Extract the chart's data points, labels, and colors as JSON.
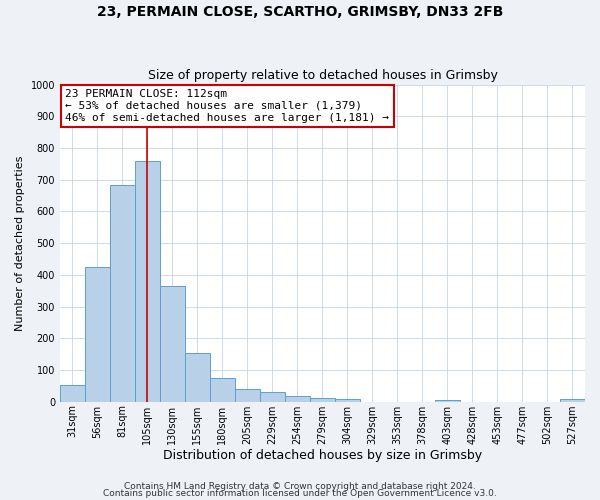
{
  "title": "23, PERMAIN CLOSE, SCARTHO, GRIMSBY, DN33 2FB",
  "subtitle": "Size of property relative to detached houses in Grimsby",
  "xlabel": "Distribution of detached houses by size in Grimsby",
  "ylabel": "Number of detached properties",
  "bar_labels": [
    "31sqm",
    "56sqm",
    "81sqm",
    "105sqm",
    "130sqm",
    "155sqm",
    "180sqm",
    "205sqm",
    "229sqm",
    "254sqm",
    "279sqm",
    "304sqm",
    "329sqm",
    "353sqm",
    "378sqm",
    "403sqm",
    "428sqm",
    "453sqm",
    "477sqm",
    "502sqm",
    "527sqm"
  ],
  "bar_values": [
    52,
    425,
    682,
    760,
    365,
    153,
    75,
    40,
    32,
    18,
    10,
    8,
    0,
    0,
    0,
    5,
    0,
    0,
    0,
    0,
    8
  ],
  "bar_color": "#b8d0e8",
  "bar_edge_color": "#5a9fd4",
  "annotation_title": "23 PERMAIN CLOSE: 112sqm",
  "annotation_line1": "← 53% of detached houses are smaller (1,379)",
  "annotation_line2": "46% of semi-detached houses are larger (1,181) →",
  "annotation_box_color": "#ffffff",
  "annotation_border_color": "#cc0000",
  "vline_color": "#cc0000",
  "vline_bar_index": 3,
  "ylim": [
    0,
    1000
  ],
  "yticks": [
    0,
    100,
    200,
    300,
    400,
    500,
    600,
    700,
    800,
    900,
    1000
  ],
  "footer1": "Contains HM Land Registry data © Crown copyright and database right 2024.",
  "footer2": "Contains public sector information licensed under the Open Government Licence v3.0.",
  "bg_color": "#eef2f7",
  "plot_bg_color": "#ffffff",
  "grid_color": "#c5d5e8",
  "title_fontsize": 10,
  "subtitle_fontsize": 9,
  "xlabel_fontsize": 9,
  "ylabel_fontsize": 8,
  "tick_fontsize": 7,
  "annotation_fontsize": 8,
  "footer_fontsize": 6.5
}
